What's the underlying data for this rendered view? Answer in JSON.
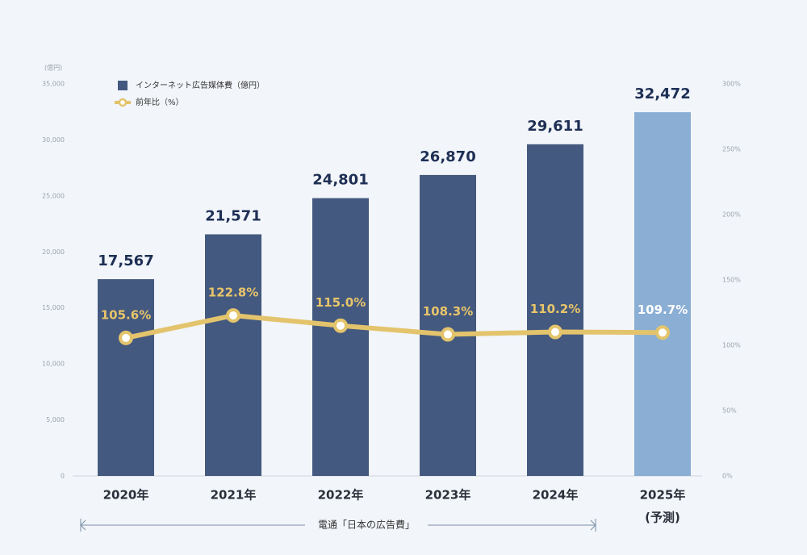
{
  "chart_data": {
    "type": "bar",
    "y_unit": "(億円)",
    "categories": [
      "2020年",
      "2021年",
      "2022年",
      "2023年",
      "2024年",
      "2025年"
    ],
    "forecast_note": "(予測)",
    "series": [
      {
        "name": "インターネット広告媒体費（億円）",
        "type": "bar",
        "color": "#44597f",
        "colors": [
          "#44597f",
          "#44597f",
          "#44597f",
          "#44597f",
          "#44597f",
          "#8aaed4"
        ],
        "values": [
          17567,
          21571,
          24801,
          26870,
          29611,
          32472
        ],
        "value_labels": [
          "17,567",
          "21,571",
          "24,801",
          "26,870",
          "29,611",
          "32,472"
        ]
      },
      {
        "name": "前年比（%）",
        "type": "line",
        "axis": "y2",
        "color": "#e3c46c",
        "values": [
          105.6,
          122.8,
          115.0,
          108.3,
          110.2,
          109.7
        ],
        "value_labels": [
          "105.6%",
          "122.8%",
          "115.0%",
          "108.3%",
          "110.2%",
          "109.7%"
        ],
        "label_colors": [
          "#e8c56a",
          "#e8c56a",
          "#e8c56a",
          "#e8c56a",
          "#e8c56a",
          "#ffffff"
        ]
      }
    ],
    "ylim": [
      0,
      35000
    ],
    "yticks": [
      {
        "value": 0,
        "label": "0"
      },
      {
        "value": 5000,
        "label": "5,000"
      },
      {
        "value": 10000,
        "label": "10,000"
      },
      {
        "value": 15000,
        "label": "15,000"
      },
      {
        "value": 20000,
        "label": "20,000"
      },
      {
        "value": 25000,
        "label": "25,000"
      },
      {
        "value": 30000,
        "label": "30,000"
      },
      {
        "value": 35000,
        "label": "35,000"
      }
    ],
    "y2lim": [
      0,
      300
    ],
    "y2ticks": [
      {
        "value": 0,
        "label": "0%"
      },
      {
        "value": 50,
        "label": "50%"
      },
      {
        "value": 100,
        "label": "100%"
      },
      {
        "value": 150,
        "label": "150%"
      },
      {
        "value": 200,
        "label": "200%"
      },
      {
        "value": 250,
        "label": "250%"
      },
      {
        "value": 300,
        "label": "300%"
      }
    ],
    "source": "電通「日本の広告費」"
  }
}
